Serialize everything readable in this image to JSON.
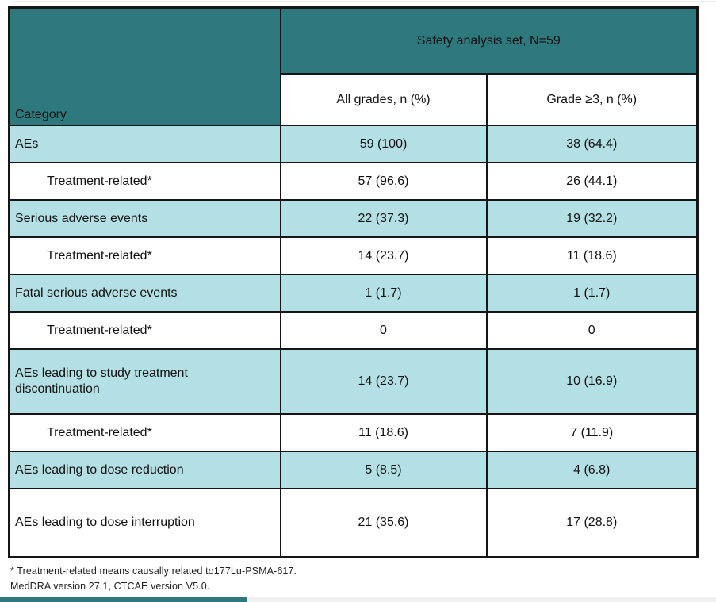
{
  "table": {
    "header": {
      "category_label": "Category",
      "group_label": "Safety analysis set, N=59",
      "all_grades_label": "All grades, n (%)",
      "grade_ge3_label": "Grade ≥3, n (%)"
    },
    "rows": [
      {
        "category": "AEs",
        "all_grades": "59 (100)",
        "grade_ge3": "38 (64.4)",
        "indent": false,
        "shaded": true
      },
      {
        "category": "Treatment-related*",
        "all_grades": "57 (96.6)",
        "grade_ge3": "26 (44.1)",
        "indent": true,
        "shaded": false
      },
      {
        "category": "Serious adverse events",
        "all_grades": "22 (37.3)",
        "grade_ge3": "19 (32.2)",
        "indent": false,
        "shaded": true
      },
      {
        "category": "Treatment-related*",
        "all_grades": "14 (23.7)",
        "grade_ge3": "11 (18.6)",
        "indent": true,
        "shaded": false
      },
      {
        "category": "Fatal serious adverse events",
        "all_grades": "1 (1.7)",
        "grade_ge3": "1 (1.7)",
        "indent": false,
        "shaded": true
      },
      {
        "category": "Treatment-related*",
        "all_grades": "0",
        "grade_ge3": "0",
        "indent": true,
        "shaded": false
      },
      {
        "category": "AEs leading to study treatment discontinuation",
        "all_grades": "14 (23.7)",
        "grade_ge3": "10 (16.9)",
        "indent": false,
        "shaded": true
      },
      {
        "category": "Treatment-related*",
        "all_grades": "11 (18.6)",
        "grade_ge3": "7 (11.9)",
        "indent": true,
        "shaded": false
      },
      {
        "category": "AEs leading to dose reduction",
        "all_grades": "5 (8.5)",
        "grade_ge3": "4 (6.8)",
        "indent": false,
        "shaded": true
      },
      {
        "category": "AEs leading to dose interruption",
        "all_grades": "21 (35.6)",
        "grade_ge3": "17 (28.8)",
        "indent": false,
        "shaded": false
      }
    ]
  },
  "footnotes": {
    "line1": "* Treatment-related means causally related to177Lu-PSMA-617.",
    "line2": "MedDRA version 27.1, CTCAE version V5.0."
  },
  "colors": {
    "header_teal": "#2E797E",
    "row_teal": "#B3E0E4",
    "border": "#151515"
  }
}
